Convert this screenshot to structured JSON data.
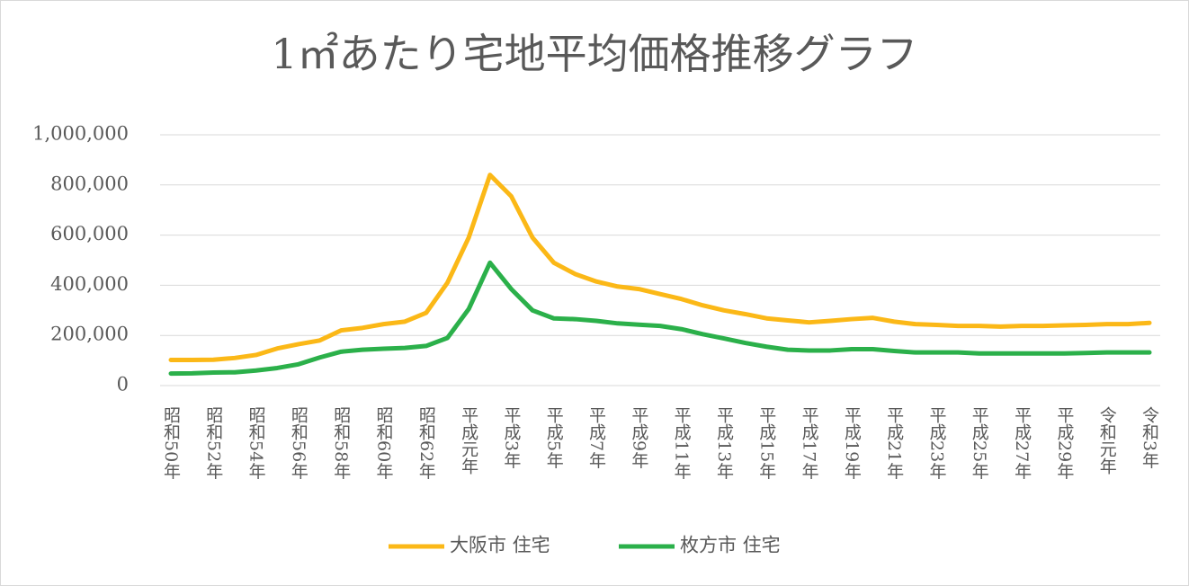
{
  "chart_data": {
    "type": "line",
    "title": "1㎡あたり宅地平均価格推移グラフ",
    "categories": [
      "昭和50年",
      null,
      "昭和52年",
      null,
      "昭和54年",
      null,
      "昭和56年",
      null,
      "昭和58年",
      null,
      "昭和60年",
      null,
      "昭和62年",
      null,
      "平成元年",
      null,
      "平成3年",
      null,
      "平成5年",
      null,
      "平成7年",
      null,
      "平成9年",
      null,
      "平成11年",
      null,
      "平成13年",
      null,
      "平成15年",
      null,
      "平成17年",
      null,
      "平成19年",
      null,
      "平成21年",
      null,
      "平成23年",
      null,
      "平成25年",
      null,
      "平成27年",
      null,
      "平成29年",
      null,
      "令和元年",
      null,
      "令和3年"
    ],
    "series": [
      {
        "name": "大阪市 住宅",
        "color": "#fbb817",
        "values": [
          102000,
          102000,
          103000,
          110000,
          122000,
          148000,
          165000,
          180000,
          220000,
          230000,
          245000,
          255000,
          290000,
          410000,
          590000,
          840000,
          755000,
          590000,
          490000,
          445000,
          415000,
          395000,
          385000,
          365000,
          345000,
          320000,
          300000,
          285000,
          268000,
          260000,
          252000,
          258000,
          265000,
          270000,
          255000,
          245000,
          242000,
          238000,
          238000,
          235000,
          238000,
          238000,
          240000,
          242000,
          245000,
          245000,
          250000
        ]
      },
      {
        "name": "枚方市 住宅",
        "color": "#2bb04a",
        "values": [
          48000,
          49000,
          52000,
          53000,
          60000,
          70000,
          85000,
          112000,
          135000,
          143000,
          147000,
          150000,
          158000,
          190000,
          305000,
          490000,
          385000,
          300000,
          268000,
          265000,
          258000,
          248000,
          243000,
          238000,
          225000,
          205000,
          188000,
          170000,
          155000,
          143000,
          140000,
          140000,
          145000,
          145000,
          138000,
          132000,
          132000,
          132000,
          128000,
          128000,
          128000,
          128000,
          128000,
          130000,
          132000,
          132000,
          132000
        ]
      }
    ],
    "ylim": [
      0,
      1000000
    ],
    "yticks": [
      0,
      {
        "value": 200000,
        "label": "200,000"
      },
      {
        "value": 400000,
        "label": "400,000"
      },
      {
        "value": 600000,
        "label": "600,000"
      },
      {
        "value": 800000,
        "label": "800,000"
      },
      {
        "value": 1000000,
        "label": "1,000,000"
      }
    ],
    "grid": true,
    "legend": "bottom"
  }
}
